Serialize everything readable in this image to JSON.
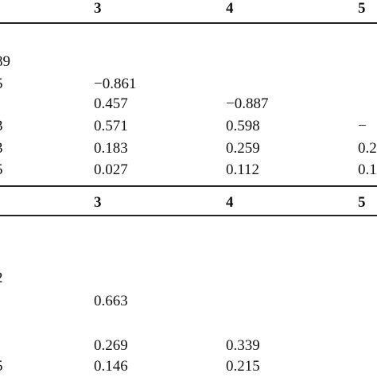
{
  "table": {
    "block1": {
      "header": {
        "c3": "3",
        "c4": "4",
        "c5": "5"
      },
      "row_label_top": "89",
      "rows": [
        {
          "label": "5",
          "c3": "−0.861",
          "c4": "",
          "c5": ""
        },
        {
          "label": "",
          "c3": "0.457",
          "c4": "−0.887",
          "c5": ""
        },
        {
          "label": "3",
          "c3": "0.571",
          "c4": "0.598",
          "c5": "−"
        },
        {
          "label": "3",
          "c3": "0.183",
          "c4": "0.259",
          "c5": "0.2"
        },
        {
          "label": "5",
          "c3": "0.027",
          "c4": "0.112",
          "c5": "0.1"
        }
      ]
    },
    "block2": {
      "header": {
        "c3": "3",
        "c4": "4",
        "c5": "5"
      },
      "row_label_top": "2",
      "rows": [
        {
          "label": "",
          "c3": "0.663",
          "c4": "",
          "c5": ""
        },
        {
          "label": "",
          "c3": "0.269",
          "c4": "0.339",
          "c5": ""
        },
        {
          "label": "5",
          "c3": "0.146",
          "c4": "0.215",
          "c5": ""
        }
      ]
    }
  }
}
